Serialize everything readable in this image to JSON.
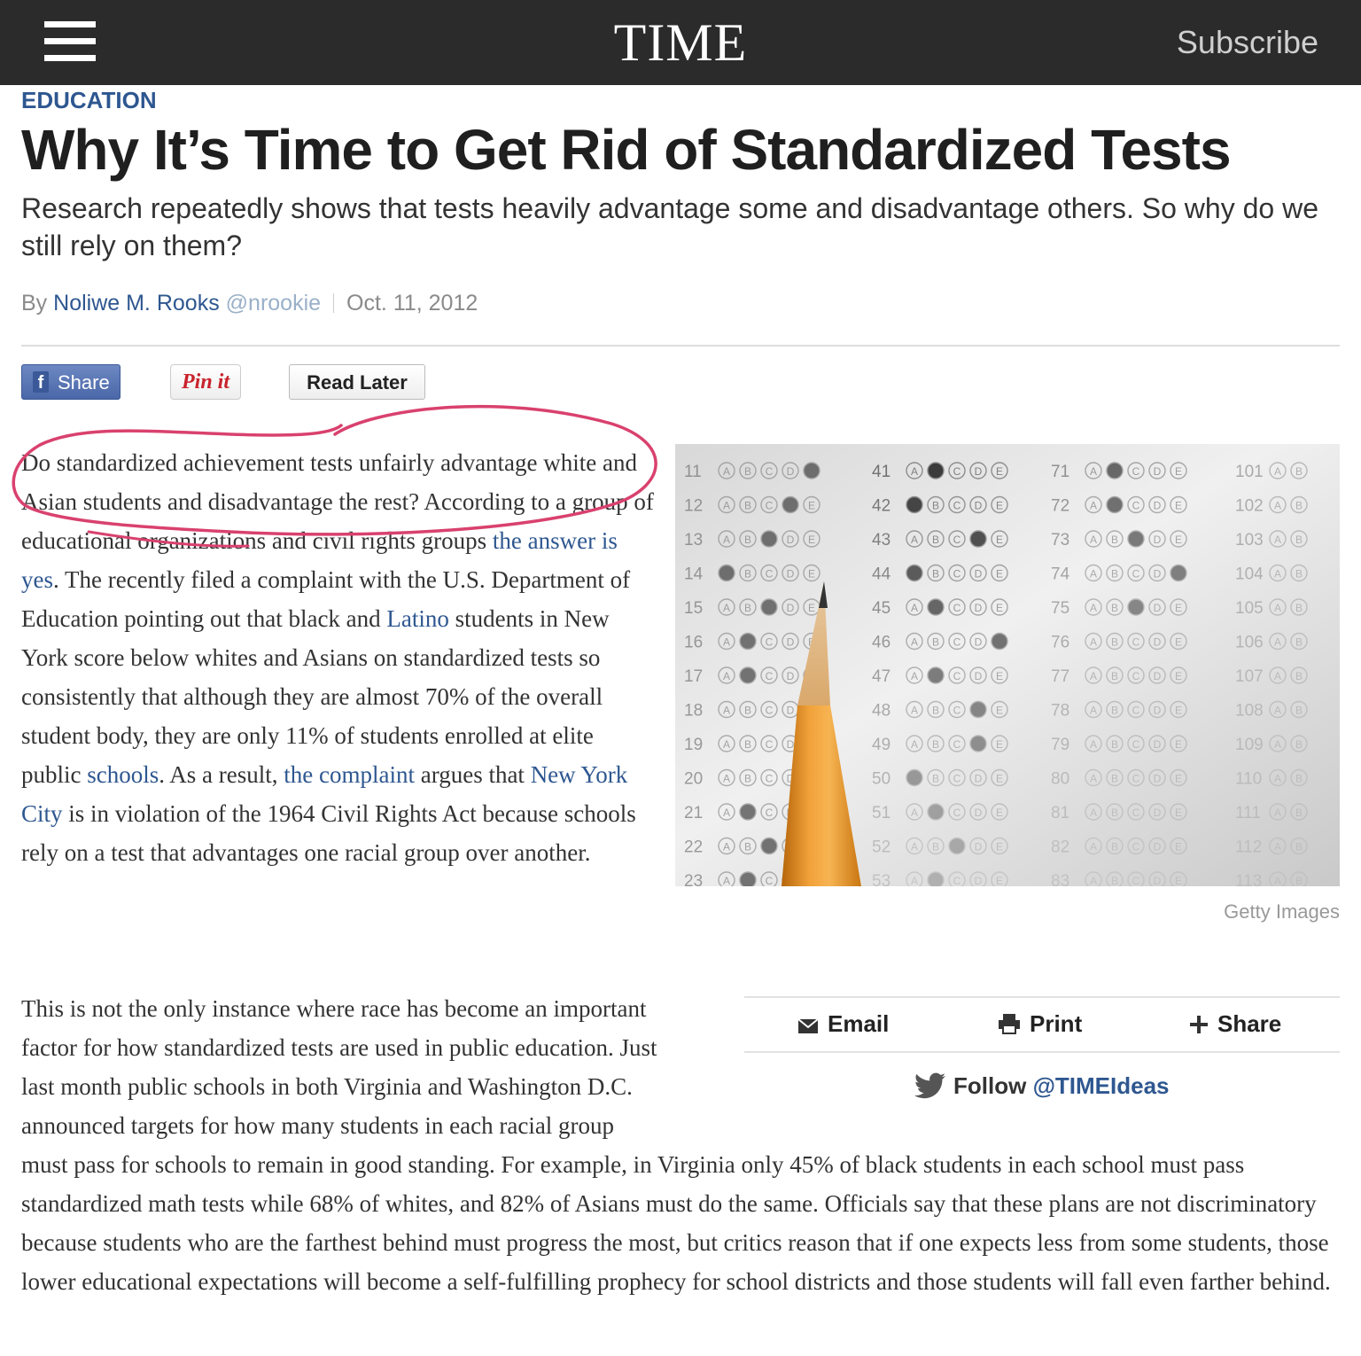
{
  "header": {
    "logo": "TIME",
    "subscribe_label": "Subscribe"
  },
  "article": {
    "section": "EDUCATION",
    "headline": "Why It’s Time to Get Rid of Standardized Tests",
    "dek": "Research repeatedly shows that tests heavily advantage some and disadvantage others. So why do we still rely on them?",
    "byline": {
      "by": "By",
      "author": "Noliwe M. Rooks",
      "handle": "@nrookie",
      "date": "Oct. 11, 2012"
    }
  },
  "social": {
    "fb_icon": "f",
    "fb_share_label": "Share",
    "pinit_label": "Pin it",
    "read_later_label": "Read Later"
  },
  "body": {
    "p1": {
      "t1": "Do standardized achievement tests unfairly advantage white and Asian students and disadvantage the rest? According to a group of educational organizations and civil rights groups ",
      "l1": "the answer is yes",
      "t2": ". The recently filed a complaint with the U.S. Department of Education pointing out that black and ",
      "l2": "Latino",
      "t3": " students in New York score below whites and Asians on standardized tests so consistently that although they are almost 70% of the overall student body, they are only 11% of students enrolled at elite public ",
      "l3": "schools",
      "t4": ". As a result, ",
      "l4": "the complaint",
      "t5": " argues that ",
      "l5": "New York City",
      "t6": " is in violation of the 1964 Civil Rights Act because schools rely on a test that advantages one racial group over another."
    },
    "p2": "This is not the only instance where race has become an important factor for how standardized tests are used in public education. Just last month public schools in both Virginia and Washington D.C. announced targets for how many students in each racial group must pass for schools to remain in good standing. For example, in Virginia only 45% of black students in each school must pass standardized math tests while 68% of whites, and 82% of Asians must do the same. Officials say that these plans are not discriminatory because students who are the farthest behind must progress the most, but critics reason that if one expects less from some students, those lower educational expectations will become a self-fulfilling prophecy for school districts and those students will fall even farther behind."
  },
  "image": {
    "credit": "Getty Images",
    "sheet_numbers": [
      "41",
      "42",
      "43",
      "44",
      "45",
      "46",
      "47",
      "48",
      "49",
      "50",
      "51",
      "52",
      "53"
    ],
    "sheet_numbers_2": [
      "71",
      "72",
      "73",
      "74",
      "75",
      "76",
      "77",
      "78",
      "79",
      "80",
      "81",
      "82",
      "83"
    ],
    "sheet_numbers_0": [
      "11",
      "12",
      "13",
      "14",
      "15",
      "16",
      "17",
      "18",
      "19",
      "20",
      "21",
      "22",
      "23"
    ],
    "sheet_numbers_3": [
      "101",
      "102",
      "103",
      "104",
      "105",
      "106",
      "107",
      "108",
      "109",
      "110",
      "111",
      "112",
      "113"
    ],
    "letters": [
      "A",
      "B",
      "C",
      "D",
      "E"
    ]
  },
  "tools": {
    "email_label": "Email",
    "print_label": "Print",
    "share_label": "Share",
    "follow_label": "Follow",
    "follow_handle": "@TIMEIdeas"
  },
  "colors": {
    "topbar": "#2b2b2b",
    "link": "#2e5790",
    "scribble": "#d9416e"
  }
}
